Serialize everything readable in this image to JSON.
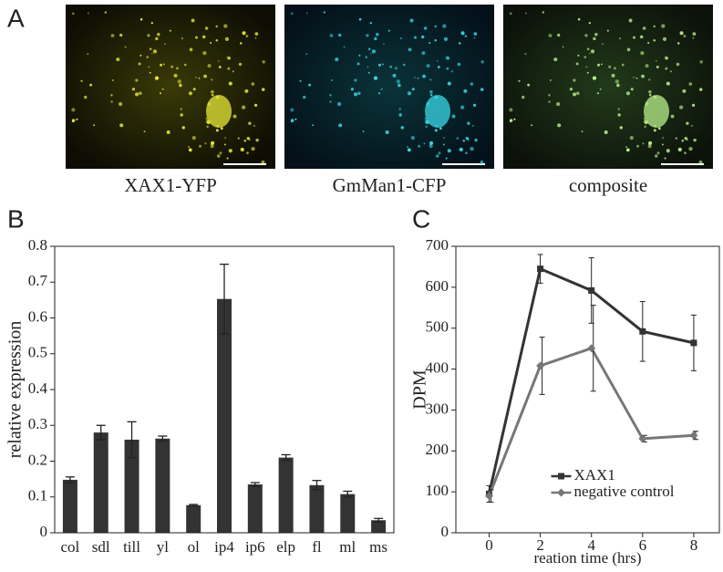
{
  "figure": {
    "panel_labels": [
      "A",
      "B",
      "C"
    ],
    "image_captions": [
      "XAX1-YFP",
      "GmMan1-CFP",
      "composite"
    ]
  },
  "chart_data": [
    {
      "type": "bar",
      "y_label": "relative expression",
      "categories": [
        "col",
        "sdl",
        "till",
        "yl",
        "ol",
        "ip4",
        "ip6",
        "elp",
        "fl",
        "ml",
        "ms"
      ],
      "values": [
        0.148,
        0.28,
        0.26,
        0.263,
        0.077,
        0.653,
        0.135,
        0.21,
        0.133,
        0.108,
        0.035
      ],
      "errors": [
        0.008,
        0.02,
        0.05,
        0.007,
        0.002,
        0.097,
        0.005,
        0.008,
        0.013,
        0.008,
        0.005
      ],
      "color": "#333333",
      "ylim": [
        0,
        0.8
      ],
      "yticks": [
        0,
        0.1,
        0.2,
        0.3,
        0.4,
        0.5,
        0.6,
        0.7,
        0.8
      ]
    },
    {
      "type": "line",
      "x_label": "reation time (hrs)",
      "y_label": "DPM",
      "x": [
        0,
        2,
        4,
        6,
        8
      ],
      "xlim": [
        -1.3,
        9
      ],
      "xticks": [
        0,
        2,
        4,
        6,
        8
      ],
      "ylim": [
        0,
        700
      ],
      "yticks": [
        0,
        100,
        200,
        300,
        400,
        500,
        600,
        700
      ],
      "legend": "lower center",
      "series": [
        {
          "name": "XAX1",
          "color": "#333333",
          "marker": "square",
          "values": [
            95,
            645,
            592,
            492,
            464
          ],
          "errors": [
            20,
            35,
            80,
            73,
            68
          ]
        },
        {
          "name": "negative control",
          "color": "#777777",
          "marker": "diamond",
          "values": [
            90,
            408,
            451,
            230,
            238
          ],
          "errors": [
            15,
            70,
            105,
            8,
            10
          ]
        }
      ]
    }
  ]
}
